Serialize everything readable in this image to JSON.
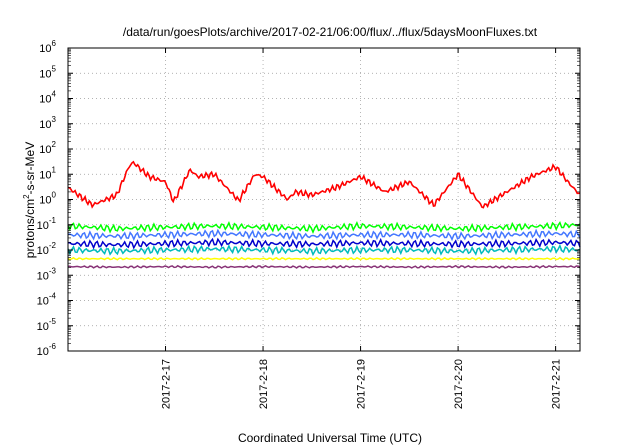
{
  "chart_data": {
    "type": "line",
    "title": "/data/run/goesPlots/archive/2017-02-21/06:00/flux/../flux/5daysMoonFluxes.txt",
    "xlabel": "Coordinated Universal Time (UTC)",
    "ylabel": "protons/cm2-s-sr-MeV",
    "ylabel_base": "protons/cm",
    "ylabel_sup": "2",
    "ylabel_rest": "-s-sr-MeV",
    "y_scale": "log",
    "ylim": [
      1e-06,
      1000000.0
    ],
    "y_ticks": [
      {
        "base": "10",
        "exp": "-6"
      },
      {
        "base": "10",
        "exp": "-5"
      },
      {
        "base": "10",
        "exp": "-4"
      },
      {
        "base": "10",
        "exp": "-3"
      },
      {
        "base": "10",
        "exp": "-2"
      },
      {
        "base": "10",
        "exp": "-1"
      },
      {
        "base": "10",
        "exp": "0"
      },
      {
        "base": "10",
        "exp": "1"
      },
      {
        "base": "10",
        "exp": "2"
      },
      {
        "base": "10",
        "exp": "3"
      },
      {
        "base": "10",
        "exp": "4"
      },
      {
        "base": "10",
        "exp": "5"
      },
      {
        "base": "10",
        "exp": "6"
      }
    ],
    "xlim": [
      "2017-02-16 00:00",
      "2017-02-21 06:00"
    ],
    "x_ticks": [
      "2017-2-17",
      "2017-2-18",
      "2017-2-19",
      "2017-2-20",
      "2017-2-21"
    ],
    "grid": true,
    "legend": "none",
    "series": [
      {
        "color": "#ff0000",
        "x": [
          "2017-02-16 00:00",
          "2017-02-16 06:00",
          "2017-02-16 12:00",
          "2017-02-16 15:00",
          "2017-02-16 16:00",
          "2017-02-16 20:00",
          "2017-02-17 00:00",
          "2017-02-17 02:00",
          "2017-02-17 06:00",
          "2017-02-17 08:00",
          "2017-02-17 12:00",
          "2017-02-17 18:00",
          "2017-02-17 22:00",
          "2017-02-18 00:00",
          "2017-02-18 06:00",
          "2017-02-18 08:00",
          "2017-02-18 12:00",
          "2017-02-18 18:00",
          "2017-02-19 00:00",
          "2017-02-19 06:00",
          "2017-02-19 12:00",
          "2017-02-19 18:00",
          "2017-02-20 00:00",
          "2017-02-20 06:00",
          "2017-02-20 12:00",
          "2017-02-20 18:00",
          "2017-02-21 00:00",
          "2017-02-21 03:00",
          "2017-02-21 06:00"
        ],
        "values": [
          3,
          0.6,
          1.5,
          20,
          30,
          8,
          5,
          0.8,
          15,
          8,
          10,
          0.9,
          10,
          8,
          1,
          2,
          1.5,
          3,
          8,
          2,
          5,
          0.6,
          10,
          0.5,
          2,
          8,
          20,
          5,
          1.5
        ]
      },
      {
        "color": "#00ff00",
        "x": [
          "2017-02-16 00:00",
          "2017-02-16 12:00",
          "2017-02-17 00:00",
          "2017-02-17 12:00",
          "2017-02-18 00:00",
          "2017-02-18 12:00",
          "2017-02-19 00:00",
          "2017-02-19 12:00",
          "2017-02-20 00:00",
          "2017-02-20 12:00",
          "2017-02-21 00:00",
          "2017-02-21 06:00"
        ],
        "values": [
          0.09,
          0.07,
          0.08,
          0.09,
          0.08,
          0.07,
          0.09,
          0.08,
          0.07,
          0.08,
          0.09,
          0.1
        ]
      },
      {
        "color": "#4477ff",
        "x": [
          "2017-02-16 00:00",
          "2017-02-16 12:00",
          "2017-02-17 00:00",
          "2017-02-17 12:00",
          "2017-02-18 00:00",
          "2017-02-18 12:00",
          "2017-02-19 00:00",
          "2017-02-19 12:00",
          "2017-02-20 00:00",
          "2017-02-20 12:00",
          "2017-02-21 00:00",
          "2017-02-21 06:00"
        ],
        "values": [
          0.04,
          0.035,
          0.04,
          0.045,
          0.04,
          0.035,
          0.04,
          0.04,
          0.035,
          0.04,
          0.045,
          0.04
        ]
      },
      {
        "color": "#00bbbb",
        "x": [
          "2017-02-16 00:00",
          "2017-02-16 12:00",
          "2017-02-17 00:00",
          "2017-02-17 12:00",
          "2017-02-18 00:00",
          "2017-02-18 12:00",
          "2017-02-19 00:00",
          "2017-02-19 12:00",
          "2017-02-20 00:00",
          "2017-02-20 12:00",
          "2017-02-21 00:00",
          "2017-02-21 06:00"
        ],
        "values": [
          0.01,
          0.009,
          0.01,
          0.011,
          0.01,
          0.009,
          0.01,
          0.01,
          0.009,
          0.01,
          0.011,
          0.01
        ]
      },
      {
        "color": "#0000cc",
        "x": [
          "2017-02-16 00:00",
          "2017-02-16 12:00",
          "2017-02-17 00:00",
          "2017-02-17 12:00",
          "2017-02-18 00:00",
          "2017-02-18 12:00",
          "2017-02-19 00:00",
          "2017-02-19 12:00",
          "2017-02-20 00:00",
          "2017-02-20 12:00",
          "2017-02-21 00:00",
          "2017-02-21 06:00"
        ],
        "values": [
          0.018,
          0.016,
          0.018,
          0.02,
          0.018,
          0.017,
          0.019,
          0.018,
          0.017,
          0.018,
          0.02,
          0.018
        ]
      },
      {
        "color": "#ffff00",
        "x": [
          "2017-02-16 00:00",
          "2017-02-16 12:00",
          "2017-02-17 00:00",
          "2017-02-17 12:00",
          "2017-02-18 00:00",
          "2017-02-18 12:00",
          "2017-02-19 00:00",
          "2017-02-19 12:00",
          "2017-02-20 00:00",
          "2017-02-20 12:00",
          "2017-02-21 00:00",
          "2017-02-21 06:00"
        ],
        "values": [
          0.0045,
          0.0045,
          0.0045,
          0.0045,
          0.0045,
          0.0045,
          0.0045,
          0.0045,
          0.0045,
          0.0045,
          0.0045,
          0.0045
        ]
      },
      {
        "color": "#883377",
        "x": [
          "2017-02-16 00:00",
          "2017-02-16 12:00",
          "2017-02-17 00:00",
          "2017-02-17 12:00",
          "2017-02-18 00:00",
          "2017-02-18 12:00",
          "2017-02-19 00:00",
          "2017-02-19 12:00",
          "2017-02-20 00:00",
          "2017-02-20 12:00",
          "2017-02-21 00:00",
          "2017-02-21 06:00"
        ],
        "values": [
          0.0022,
          0.0021,
          0.0022,
          0.0021,
          0.0022,
          0.0021,
          0.0022,
          0.0021,
          0.0022,
          0.0021,
          0.0022,
          0.0022
        ]
      }
    ]
  }
}
